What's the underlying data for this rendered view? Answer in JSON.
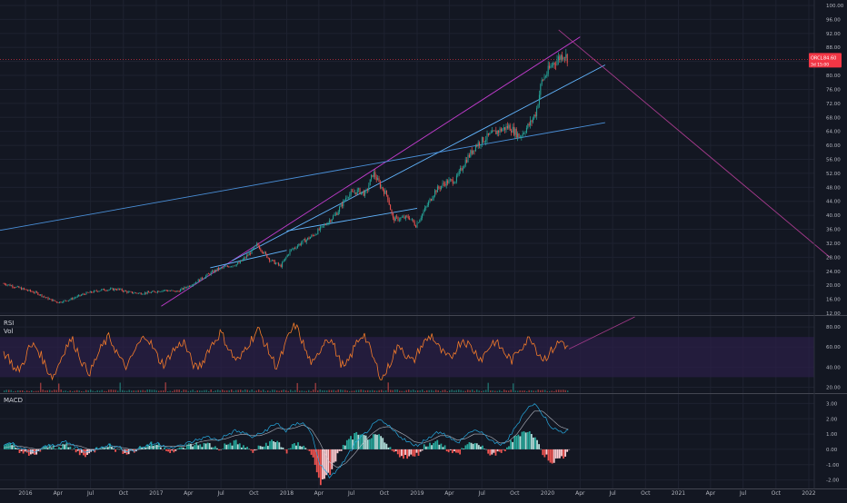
{
  "chart_data": [
    {
      "type": "line",
      "subtype": "candlestick",
      "ylim": [
        12,
        100
      ],
      "y_ticks": [
        "100.00",
        "96.00",
        "92.00",
        "88.00",
        "84.00",
        "80.00",
        "76.00",
        "72.00",
        "68.00",
        "64.00",
        "60.00",
        "56.00",
        "52.00",
        "48.00",
        "44.00",
        "40.00",
        "36.00",
        "32.00",
        "28.00",
        "24.00",
        "20.00",
        "16.00",
        "12.00"
      ],
      "price_tag": {
        "symbol": "ORCL",
        "value": "84.60",
        "sub": "3d 15:00",
        "color": "#f23645"
      },
      "price_path": [
        [
          "2015-11-01",
          20.5
        ],
        [
          "2015-12-15",
          19.2
        ],
        [
          "2016-02-01",
          17.8
        ],
        [
          "2016-03-01",
          16.3
        ],
        [
          "2016-04-01",
          15.1
        ],
        [
          "2016-05-01",
          15.8
        ],
        [
          "2016-06-15",
          17.6
        ],
        [
          "2016-08-01",
          18.7
        ],
        [
          "2016-09-15",
          18.9
        ],
        [
          "2016-10-15",
          18.0
        ],
        [
          "2016-11-15",
          17.7
        ],
        [
          "2016-12-15",
          17.9
        ],
        [
          "2017-01-20",
          18.6
        ],
        [
          "2017-03-01",
          18.2
        ],
        [
          "2017-04-15",
          20.5
        ],
        [
          "2017-05-15",
          22.4
        ],
        [
          "2017-06-20",
          24.5
        ],
        [
          "2017-07-20",
          25.4
        ],
        [
          "2017-08-20",
          26.2
        ],
        [
          "2017-09-20",
          29.2
        ],
        [
          "2017-10-10",
          31.6
        ],
        [
          "2017-11-15",
          27.3
        ],
        [
          "2017-12-15",
          25.4
        ],
        [
          "2018-01-10",
          29.8
        ],
        [
          "2018-02-10",
          32.1
        ],
        [
          "2018-03-15",
          34.2
        ],
        [
          "2018-04-15",
          37.0
        ],
        [
          "2018-05-20",
          40.5
        ],
        [
          "2018-06-20",
          45.8
        ],
        [
          "2018-07-20",
          47.0
        ],
        [
          "2018-08-10",
          46.1
        ],
        [
          "2018-08-31",
          52.2
        ],
        [
          "2018-09-20",
          48.5
        ],
        [
          "2018-10-10",
          45.5
        ],
        [
          "2018-10-25",
          38.9
        ],
        [
          "2018-12-10",
          39.4
        ],
        [
          "2018-12-28",
          37.1
        ],
        [
          "2019-01-25",
          42.1
        ],
        [
          "2019-02-20",
          46.9
        ],
        [
          "2019-03-20",
          49.3
        ],
        [
          "2019-04-20",
          50.2
        ],
        [
          "2019-05-15",
          55.4
        ],
        [
          "2019-06-15",
          60.1
        ],
        [
          "2019-07-15",
          62.3
        ],
        [
          "2019-08-15",
          64.1
        ],
        [
          "2019-09-15",
          65.4
        ],
        [
          "2019-10-15",
          62.5
        ],
        [
          "2019-11-15",
          66.5
        ],
        [
          "2019-11-30",
          69.6
        ],
        [
          "2019-12-15",
          78.2
        ],
        [
          "2020-01-15",
          83.3
        ],
        [
          "2020-02-15",
          86.2
        ],
        [
          "2020-02-28",
          84.6
        ]
      ],
      "drawings": [
        {
          "name": "upper-channel-line",
          "color": "#c33ccf",
          "from": [
            "2017-01-15",
            14.0
          ],
          "to": [
            "2020-04-01",
            91.0
          ]
        },
        {
          "name": "lower-channel-line",
          "color": "#62b6ff",
          "from": [
            "2017-08-01",
            27.0
          ],
          "to": [
            "2020-06-10",
            83.0
          ]
        },
        {
          "name": "long-trend-line",
          "color": "#4a90d9",
          "from": [
            "2014-07-01",
            27.0
          ],
          "to": [
            "2020-06-10",
            66.5
          ]
        },
        {
          "name": "middle-trend-line",
          "color": "#62b6ff",
          "from": [
            "2018-01-01",
            35.5
          ],
          "to": [
            "2019-01-01",
            42.0
          ]
        },
        {
          "name": "short-support-line",
          "color": "#62b6ff",
          "from": [
            "2017-06-01",
            25.0
          ],
          "to": [
            "2018-01-01",
            30.0
          ]
        },
        {
          "name": "descending-projection-line",
          "color": "#a53a8c",
          "from": [
            "2020-02-01",
            93.0
          ],
          "to": [
            "2022-03-01",
            28.0
          ]
        }
      ]
    },
    {
      "type": "line",
      "name": "RSI",
      "label": "RSI",
      "ylim": [
        15,
        90
      ],
      "y_ticks": [
        "80.00",
        "60.00",
        "40.00",
        "20.00"
      ],
      "band": [
        30,
        70
      ],
      "values": [
        55,
        48,
        35,
        42,
        58,
        62,
        52,
        38,
        30,
        45,
        60,
        68,
        55,
        40,
        35,
        50,
        62,
        70,
        58,
        45,
        40,
        55,
        65,
        72,
        60,
        48,
        42,
        55,
        60,
        66,
        50,
        38,
        44,
        58,
        66,
        75,
        62,
        50,
        46,
        60,
        68,
        78,
        65,
        52,
        40,
        55,
        72,
        82,
        68,
        50,
        42,
        58,
        70,
        65,
        48,
        38,
        52,
        66,
        74,
        58,
        42,
        28,
        40,
        55,
        62,
        50,
        45,
        58,
        66,
        72,
        60,
        52,
        48,
        60,
        68,
        62,
        55,
        48,
        58,
        66,
        60,
        52,
        46,
        58,
        64,
        70,
        56,
        48,
        54,
        62,
        66,
        58
      ],
      "projection": {
        "from": [
          "2020-03-01",
          58
        ],
        "to": [
          "2020-09-01",
          90
        ]
      }
    },
    {
      "type": "line",
      "name": "Vol",
      "label": "Vol"
    },
    {
      "type": "bar",
      "name": "MACD",
      "label": "MACD",
      "ylim": [
        -2.5,
        3.5
      ],
      "y_ticks": [
        "3.00",
        "2.00",
        "1.00",
        "0.00",
        "-1.00",
        "-2.00"
      ],
      "macd_line": [
        0.2,
        0.4,
        0.1,
        -0.2,
        -0.1,
        0.2,
        0.3,
        0.5,
        0.3,
        0.0,
        -0.2,
        0.1,
        0.3,
        0.2,
        0.0,
        -0.1,
        0.1,
        0.3,
        0.4,
        0.2,
        0.1,
        0.3,
        0.5,
        0.7,
        0.8,
        0.6,
        0.9,
        1.2,
        1.1,
        0.8,
        1.0,
        1.4,
        1.7,
        1.2,
        1.6,
        1.8,
        1.0,
        -1.0,
        -1.8,
        -1.4,
        -0.6,
        0.3,
        0.9,
        1.5,
        1.9,
        1.5,
        1.0,
        0.6,
        0.2,
        0.5,
        0.9,
        1.2,
        0.8,
        0.4,
        0.9,
        1.3,
        1.0,
        0.6,
        0.2,
        0.7,
        1.6,
        2.6,
        3.0,
        2.3,
        1.5,
        1.1,
        1.3
      ],
      "signal_line": [
        0.1,
        0.2,
        0.2,
        0.1,
        0.0,
        0.1,
        0.2,
        0.3,
        0.3,
        0.2,
        0.0,
        0.0,
        0.1,
        0.2,
        0.1,
        0.0,
        0.0,
        0.1,
        0.2,
        0.2,
        0.2,
        0.2,
        0.3,
        0.5,
        0.6,
        0.6,
        0.7,
        0.9,
        1.0,
        0.9,
        0.9,
        1.1,
        1.4,
        1.3,
        1.4,
        1.6,
        1.3,
        0.4,
        -0.8,
        -1.2,
        -0.9,
        -0.3,
        0.4,
        1.0,
        1.4,
        1.5,
        1.2,
        0.9,
        0.5,
        0.4,
        0.6,
        0.9,
        0.9,
        0.6,
        0.7,
        1.0,
        1.0,
        0.8,
        0.4,
        0.5,
        1.0,
        1.8,
        2.5,
        2.5,
        2.0,
        1.5,
        1.3
      ]
    }
  ],
  "x_axis": {
    "tick_labels": [
      "2016",
      "Apr",
      "Jul",
      "Oct",
      "2017",
      "Apr",
      "Jul",
      "Oct",
      "2018",
      "Apr",
      "Jul",
      "Oct",
      "2019",
      "Apr",
      "Jul",
      "Oct",
      "2020",
      "Apr",
      "Jul",
      "Oct",
      "2021",
      "Apr",
      "Jul",
      "Oct",
      "2022"
    ]
  },
  "colors": {
    "background": "#131722",
    "grid": "#1e2230",
    "axis_text": "#b2b5be",
    "rsi": "#f57c2a",
    "rsi_band": "#2a1f45",
    "macd": "#26a9e0",
    "signal": "#c3c7d0",
    "hist_up": "#26a69a",
    "hist_up_light": "#b2dfdb",
    "hist_down": "#ef5350",
    "hist_down_light": "#ffcdd2",
    "candle_up": "#26a69a",
    "candle_down": "#ef5350"
  }
}
